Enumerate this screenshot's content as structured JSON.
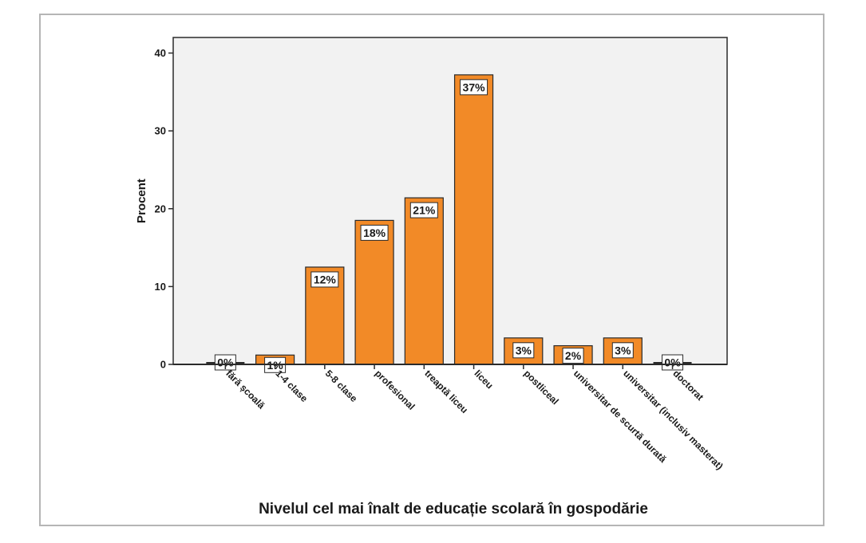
{
  "colors": {
    "plot_background": "#f2f2f2",
    "bar_fill": "#f28a27",
    "bar_stroke": "#2b2b2b",
    "frame_border": "#b5b5b5",
    "text": "#1a1a1a"
  },
  "chart_data": {
    "type": "bar",
    "title": "",
    "xlabel": "Nivelul cel mai înalt de educație scolară în gospodărie",
    "ylabel": "Procent",
    "ylim": [
      0,
      42
    ],
    "yticks": [
      0,
      10,
      20,
      30,
      40
    ],
    "grid": false,
    "legend": "none",
    "categories": [
      "fără școală",
      "1-4 clase",
      "5-8 clase",
      "profesional",
      "treaptă liceu",
      "liceu",
      "postliceal",
      "universitar de scurtă durată",
      "universitar (inclusiv masterat)",
      "doctorat"
    ],
    "values": [
      0.3,
      1.2,
      12.5,
      18.5,
      21.4,
      37.2,
      3.4,
      2.4,
      3.4,
      0.3
    ],
    "data_labels": [
      "0%",
      "1%",
      "12%",
      "18%",
      "21%",
      "37%",
      "3%",
      "2%",
      "3%",
      "0%"
    ]
  }
}
